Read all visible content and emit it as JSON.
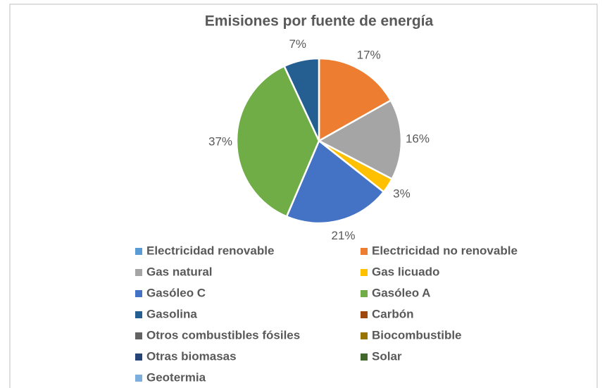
{
  "chart_data": {
    "type": "pie",
    "title": "Emisiones por fuente de energía",
    "categories": [
      "Electricidad renovable",
      "Electricidad no renovable",
      "Gas natural",
      "Gas licuado",
      "Gasóleo C",
      "Gasóleo A",
      "Gasolina",
      "Carbón",
      "Otros combustibles fósiles",
      "Biocombustible",
      "Otras biomasas",
      "Solar",
      "Geotermia"
    ],
    "values": [
      0,
      17,
      16,
      3,
      21,
      37,
      7,
      0,
      0,
      0,
      0,
      0,
      0
    ],
    "value_labels": [
      null,
      "17%",
      "16%",
      "3%",
      "21%",
      "37%",
      "7%",
      null,
      null,
      null,
      null,
      null,
      null
    ],
    "colors": [
      "#5b9bd5",
      "#ed7d31",
      "#a5a5a5",
      "#ffc000",
      "#4472c4",
      "#70ad47",
      "#255e91",
      "#9e480e",
      "#636363",
      "#997300",
      "#264478",
      "#43682b",
      "#7cafdd"
    ],
    "legend": "bottom"
  }
}
